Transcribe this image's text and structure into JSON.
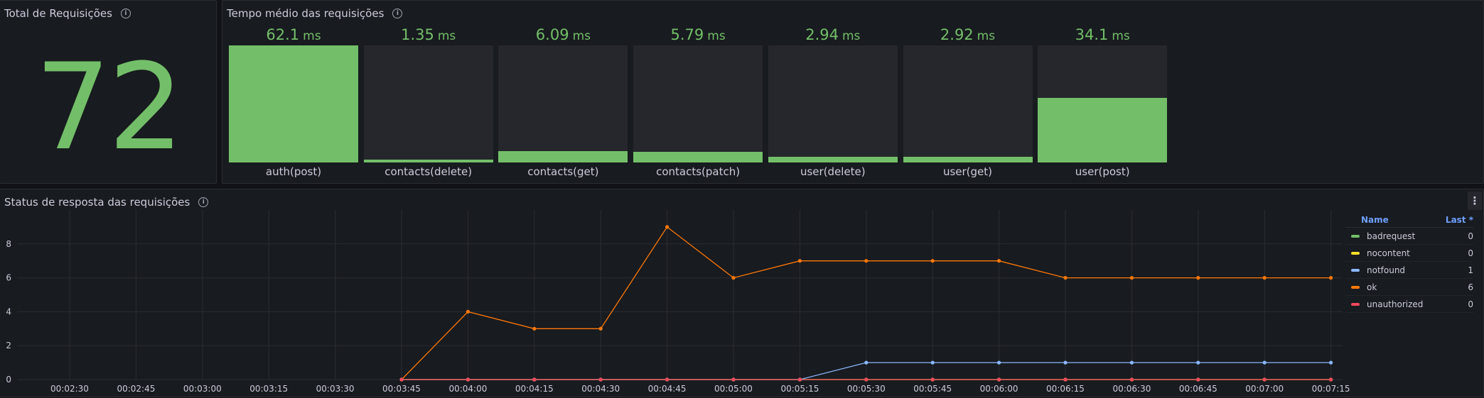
{
  "stat_panel": {
    "title": "Total de Requisições",
    "value": "72"
  },
  "gauge_panel": {
    "title": "Tempo médio das requisições",
    "unit": "ms",
    "max": 62.1,
    "items": [
      {
        "label": "auth(post)",
        "value": "62.1",
        "num": 62.1
      },
      {
        "label": "contacts(delete)",
        "value": "1.35",
        "num": 1.35
      },
      {
        "label": "contacts(get)",
        "value": "6.09",
        "num": 6.09
      },
      {
        "label": "contacts(patch)",
        "value": "5.79",
        "num": 5.79
      },
      {
        "label": "user(delete)",
        "value": "2.94",
        "num": 2.94
      },
      {
        "label": "user(get)",
        "value": "2.92",
        "num": 2.92
      },
      {
        "label": "user(post)",
        "value": "34.1",
        "num": 34.1
      }
    ]
  },
  "timeseries_panel": {
    "title": "Status de resposta das requisições",
    "menu_icon": "kebab-menu-icon",
    "legend": {
      "name_header": "Name",
      "last_header": "Last *",
      "rows": [
        {
          "name": "badrequest",
          "last": "0",
          "color": "#73bf69"
        },
        {
          "name": "nocontent",
          "last": "0",
          "color": "#fade2a"
        },
        {
          "name": "notfound",
          "last": "1",
          "color": "#8ab8ff"
        },
        {
          "name": "ok",
          "last": "6",
          "color": "#ff780a"
        },
        {
          "name": "unauthorized",
          "last": "0",
          "color": "#f2495c"
        }
      ]
    }
  },
  "chart_data": {
    "type": "line",
    "x_ticks": [
      "00:02:30",
      "00:02:45",
      "00:03:00",
      "00:03:15",
      "00:03:30",
      "00:03:45",
      "00:04:00",
      "00:04:15",
      "00:04:30",
      "00:04:45",
      "00:05:00",
      "00:05:15",
      "00:05:30",
      "00:05:45",
      "00:06:00",
      "00:06:15",
      "00:06:30",
      "00:06:45",
      "00:07:00",
      "00:07:15"
    ],
    "y_ticks": [
      "0",
      "2",
      "4",
      "6",
      "8"
    ],
    "ylim": [
      0,
      10
    ],
    "x": [
      "00:03:45",
      "00:04:00",
      "00:04:15",
      "00:04:30",
      "00:04:45",
      "00:05:00",
      "00:05:15",
      "00:05:30",
      "00:05:45",
      "00:06:00",
      "00:06:15",
      "00:06:30",
      "00:06:45",
      "00:07:00",
      "00:07:15"
    ],
    "series": [
      {
        "name": "badrequest",
        "color": "#73bf69",
        "values": [
          0,
          0,
          0,
          0,
          0,
          0,
          0,
          0,
          0,
          0,
          0,
          0,
          0,
          0,
          0
        ]
      },
      {
        "name": "nocontent",
        "color": "#fade2a",
        "values": [
          0,
          0,
          0,
          0,
          0,
          0,
          0,
          0,
          0,
          0,
          0,
          0,
          0,
          0,
          0
        ]
      },
      {
        "name": "notfound",
        "color": "#8ab8ff",
        "values": [
          0,
          0,
          0,
          0,
          0,
          0,
          0,
          1,
          1,
          1,
          1,
          1,
          1,
          1,
          1
        ]
      },
      {
        "name": "ok",
        "color": "#ff780a",
        "values": [
          0,
          4,
          3,
          3,
          9,
          6,
          7,
          7,
          7,
          7,
          6,
          6,
          6,
          6,
          6
        ]
      },
      {
        "name": "unauthorized",
        "color": "#f2495c",
        "values": [
          0,
          0,
          0,
          0,
          0,
          0,
          0,
          0,
          0,
          0,
          0,
          0,
          0,
          0,
          0
        ]
      }
    ]
  }
}
